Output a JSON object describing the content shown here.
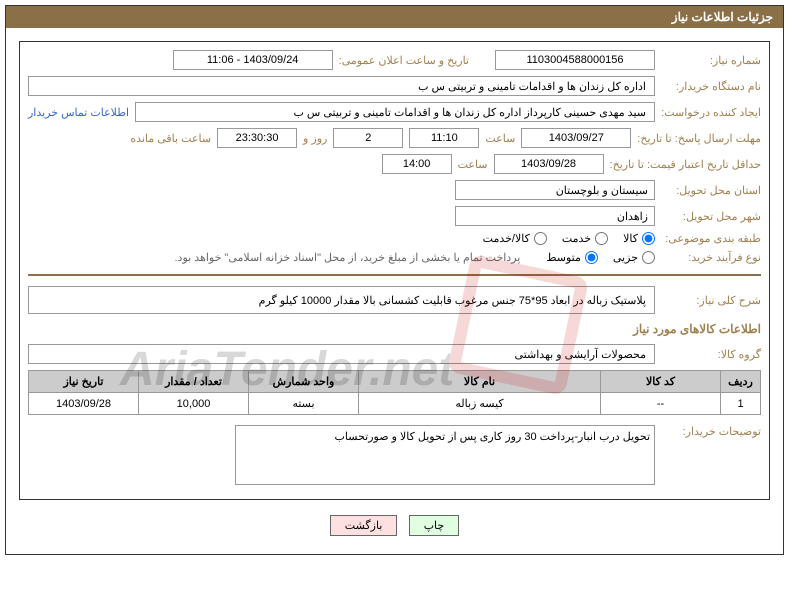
{
  "header": {
    "title": "جزئیات اطلاعات نیاز"
  },
  "niaz": {
    "number_label": "شماره نیاز:",
    "number": "1103004588000156",
    "announce_label": "تاریخ و ساعت اعلان عمومی:",
    "announce_value": "1403/09/24 - 11:06",
    "buyer_label": "نام دستگاه خریدار:",
    "buyer_value": "اداره کل زندان ها و اقدامات تامینی و تربیتی س ب",
    "requester_label": "ایجاد کننده درخواست:",
    "requester_value": "سید مهدی حسینی کارپرداز اداره کل زندان ها و اقدامات تامینی و تربیتی س ب",
    "contact_link": "اطلاعات تماس خریدار",
    "deadline_label": "مهلت ارسال پاسخ: تا تاریخ:",
    "deadline_date": "1403/09/27",
    "saat_label": "ساعت",
    "deadline_time": "11:10",
    "remain_days": "2",
    "rooz_va": "روز و",
    "remain_time": "23:30:30",
    "remain_suffix": "ساعت باقی مانده",
    "validity_label": "حداقل تاریخ اعتبار قیمت: تا تاریخ:",
    "validity_date": "1403/09/28",
    "validity_time": "14:00",
    "province_label": "استان محل تحویل:",
    "province": "سیستان و بلوچستان",
    "city_label": "شهر محل تحویل:",
    "city": "زاهدان",
    "category_label": "طبقه بندی موضوعی:",
    "cat_kala": "کالا",
    "cat_khadamat": "خدمت",
    "cat_kala_khadamat": "کالا/خدمت",
    "process_label": "نوع فرآیند خرید:",
    "proc_jozi": "جزیی",
    "proc_motavaset": "متوسط",
    "process_note": "پرداخت تمام یا بخشی از مبلغ خرید، از محل \"اسناد خزانه اسلامی\" خواهد بود."
  },
  "desc": {
    "title_label": "شرح کلی نیاز:",
    "title_value": "پلاستیک زباله در ابعاد 95*75 جنس مرغوب قابلیت کشسانی بالا مقدار 10000 کیلو گرم",
    "goods_section": "اطلاعات کالاهای مورد نیاز",
    "group_label": "گروه کالا:",
    "group_value": "محصولات آرایشی و بهداشتی"
  },
  "table": {
    "cols": [
      "ردیف",
      "کد کالا",
      "نام کالا",
      "واحد شمارش",
      "تعداد / مقدار",
      "تاریخ نیاز"
    ],
    "rows": [
      [
        "1",
        "--",
        "کیسه زباله",
        "بسته",
        "10,000",
        "1403/09/28"
      ]
    ]
  },
  "buyer_notes": {
    "label": "توضیحات خریدار:",
    "value": "تحویل درب انبار-پرداخت 30 روز کاری پس از تحویل کالا و صورتحساب"
  },
  "buttons": {
    "print": "چاپ",
    "back": "بازگشت"
  },
  "watermark": "AriaTender.net"
}
